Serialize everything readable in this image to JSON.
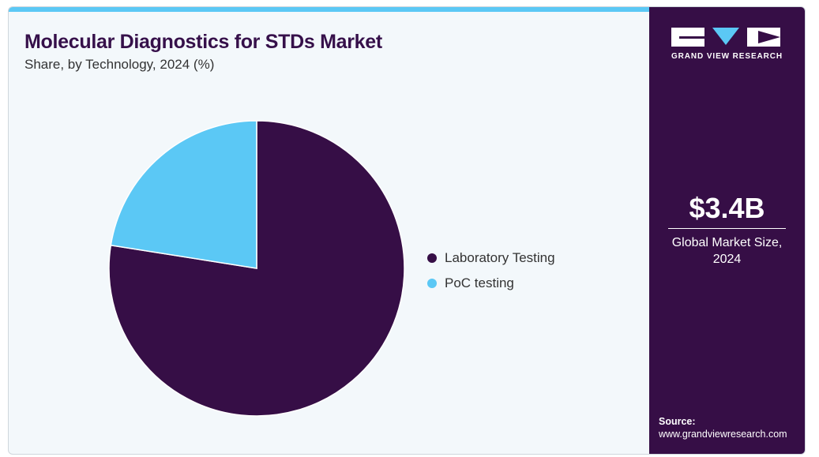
{
  "colors": {
    "accent_bar": "#5bc8f5",
    "title": "#36104a",
    "sidebar_bg": "#360e46",
    "laboratory": "#360e46",
    "poc": "#5bc8f5"
  },
  "header": {
    "title": "Molecular Diagnostics for STDs Market",
    "subtitle": "Share, by Technology, 2024 (%)"
  },
  "chart_data": {
    "type": "pie",
    "title": "Molecular Diagnostics for STDs Market",
    "subtitle": "Share, by Technology, 2024 (%)",
    "slices": [
      {
        "label": "Laboratory Testing",
        "value": 77.5,
        "color": "#360e46"
      },
      {
        "label": "PoC testing",
        "value": 22.5,
        "color": "#5bc8f5"
      }
    ],
    "start_angle": "12 o'clock",
    "direction": "clockwise",
    "legend_position": "right"
  },
  "sidebar": {
    "logo_icons": [
      "gvr-logo-bar-icon",
      "gvr-logo-triangle-icon",
      "gvr-logo-chevron-icon"
    ],
    "logo_text": "GRAND VIEW RESEARCH",
    "market_size_value": "$3.4B",
    "market_size_label_line1": "Global Market Size,",
    "market_size_label_line2": "2024",
    "source_label": "Source:",
    "source_url": "www.grandviewresearch.com"
  }
}
